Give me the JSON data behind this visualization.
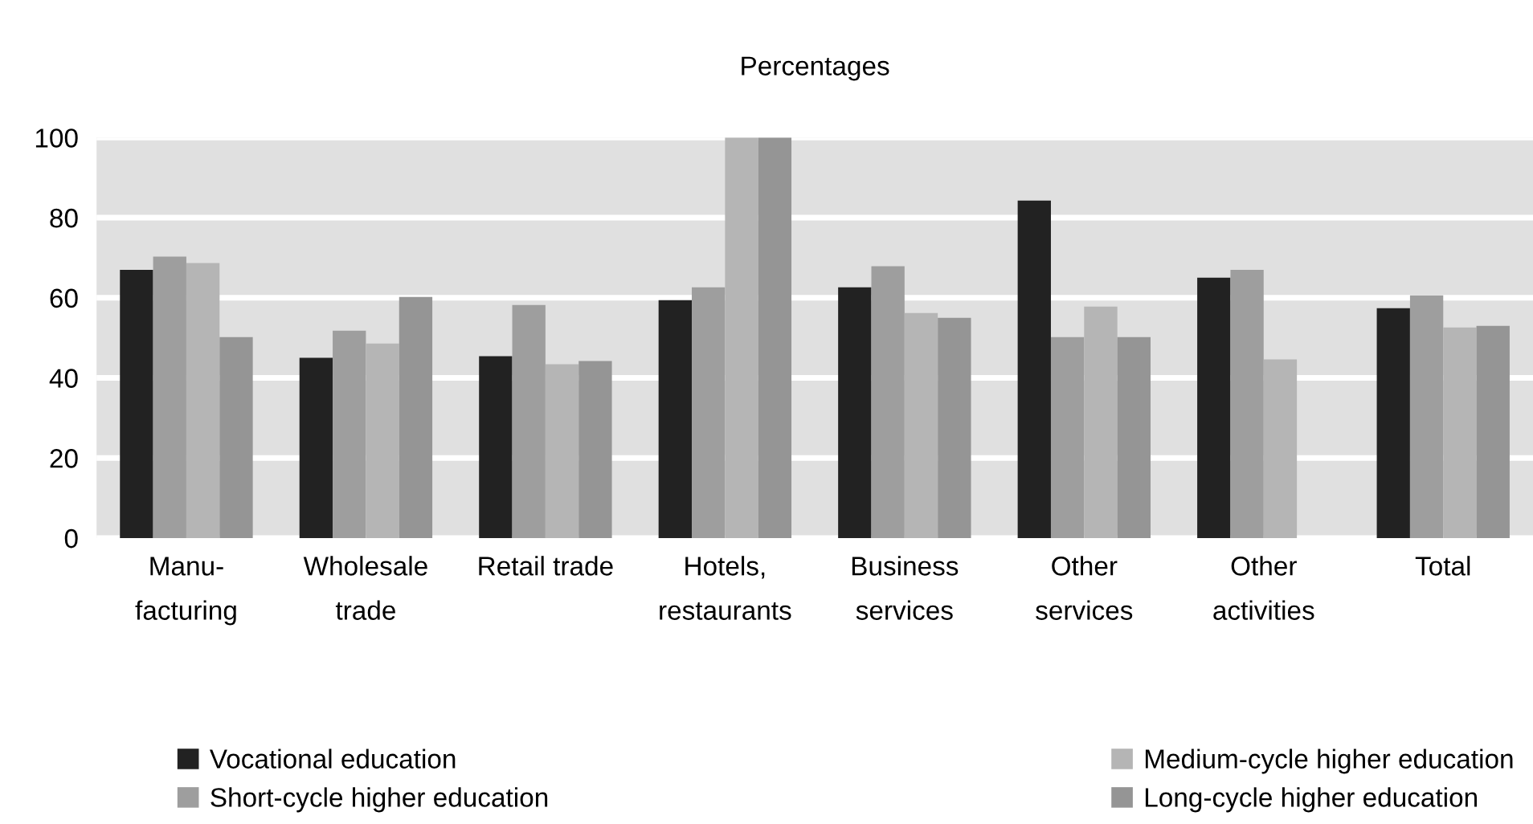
{
  "chart_data": {
    "type": "bar",
    "title": "Percentages",
    "categories": [
      "Manu-\nfacturing",
      "Wholesale\ntrade",
      "Retail trade",
      "Hotels,\nrestaurants",
      "Business\nservices",
      "Other\nservices",
      "Other\nactivities",
      "Total"
    ],
    "series": [
      {
        "name": "Vocational education",
        "color": "#222222",
        "values": [
          67,
          45,
          45.4,
          59.4,
          62.6,
          84.3,
          65,
          57.4
        ]
      },
      {
        "name": "Short-cycle higher education",
        "color": "#9e9e9e",
        "values": [
          70.3,
          51.8,
          58.2,
          62.6,
          67.9,
          50.2,
          67,
          60.6
        ]
      },
      {
        "name": "Medium-cycle higher education",
        "color": "#b5b5b5",
        "values": [
          68.7,
          48.6,
          43.4,
          100,
          56.2,
          57.8,
          44.6,
          52.6
        ]
      },
      {
        "name": "Long-cycle higher education",
        "color": "#959595",
        "values": [
          50.2,
          60.2,
          44.2,
          100,
          55,
          50.2,
          null,
          53
        ]
      }
    ],
    "ylim": [
      0,
      100
    ],
    "yticks": [
      0,
      20,
      40,
      60,
      80,
      100
    ],
    "grid": "y",
    "legend": "bottom"
  }
}
